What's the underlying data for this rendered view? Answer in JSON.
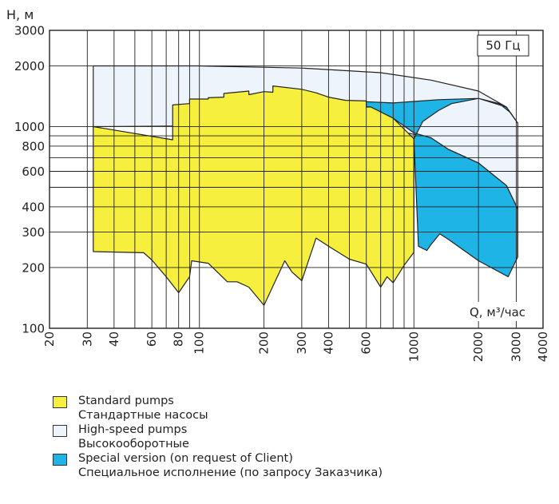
{
  "chart_data": {
    "type": "area",
    "ylabel": "H, м",
    "xlabel": "Q, м³/час",
    "badge": "50 Гц",
    "x_scale": "log",
    "y_scale": "log",
    "xlim": [
      20,
      4000
    ],
    "ylim": [
      100,
      3000
    ],
    "x_ticks": [
      20,
      30,
      40,
      60,
      80,
      100,
      200,
      300,
      400,
      600,
      1000,
      2000,
      3000,
      4000
    ],
    "y_ticks": [
      100,
      200,
      300,
      400,
      600,
      800,
      1000,
      2000,
      3000
    ],
    "grid": true,
    "colors": {
      "standard": "#f7ef3e",
      "high_speed": "#eef4fb",
      "special": "#1fb4e6",
      "grid": "#222222"
    },
    "series": [
      {
        "key": "high_speed",
        "name": "High-speed pumps",
        "name_ru": "Высокооборотные",
        "points": [
          [
            32,
            1000
          ],
          [
            32,
            2000
          ],
          [
            100,
            2000
          ],
          [
            300,
            1950
          ],
          [
            700,
            1850
          ],
          [
            1200,
            1700
          ],
          [
            2000,
            1500
          ],
          [
            2700,
            1250
          ],
          [
            3050,
            1040
          ],
          [
            3050,
            390
          ],
          [
            2700,
            510
          ],
          [
            2000,
            660
          ],
          [
            1450,
            770
          ],
          [
            1200,
            880
          ],
          [
            600,
            1020
          ],
          [
            32,
            1000
          ]
        ]
      },
      {
        "key": "special",
        "name": "Special version (on request of Client)",
        "name_ru": "Специальное исполнение (по запросу Заказчика)",
        "points": [
          [
            580,
            1330
          ],
          [
            580,
            1250
          ],
          [
            630,
            1250
          ],
          [
            800,
            1100
          ],
          [
            1000,
            930
          ],
          [
            1200,
            880
          ],
          [
            1450,
            770
          ],
          [
            2000,
            660
          ],
          [
            2700,
            510
          ],
          [
            3050,
            390
          ],
          [
            3050,
            226
          ],
          [
            2750,
            180
          ],
          [
            2000,
            216
          ],
          [
            1450,
            276
          ],
          [
            1320,
            294
          ],
          [
            1200,
            260
          ],
          [
            1150,
            243
          ],
          [
            1050,
            255
          ],
          [
            1000,
            870
          ],
          [
            1100,
            1060
          ],
          [
            1300,
            1200
          ],
          [
            1500,
            1300
          ],
          [
            2000,
            1380
          ],
          [
            2500,
            1300
          ],
          [
            2800,
            1180
          ],
          [
            3050,
            1040
          ],
          [
            2700,
            1250
          ],
          [
            2000,
            1380
          ],
          [
            1300,
            1360
          ],
          [
            800,
            1310
          ],
          [
            580,
            1330
          ]
        ]
      },
      {
        "key": "standard",
        "name": "Standard pumps",
        "name_ru": "Стандартные насосы",
        "points": [
          [
            32,
            1000
          ],
          [
            75,
            860
          ],
          [
            75,
            1280
          ],
          [
            90,
            1300
          ],
          [
            90,
            1370
          ],
          [
            110,
            1370
          ],
          [
            110,
            1390
          ],
          [
            130,
            1400
          ],
          [
            130,
            1460
          ],
          [
            170,
            1500
          ],
          [
            170,
            1440
          ],
          [
            200,
            1490
          ],
          [
            220,
            1480
          ],
          [
            220,
            1590
          ],
          [
            300,
            1530
          ],
          [
            350,
            1470
          ],
          [
            400,
            1400
          ],
          [
            480,
            1350
          ],
          [
            600,
            1340
          ],
          [
            600,
            1250
          ],
          [
            630,
            1250
          ],
          [
            800,
            1100
          ],
          [
            1000,
            870
          ],
          [
            1000,
            238
          ],
          [
            900,
            205
          ],
          [
            800,
            168
          ],
          [
            750,
            180
          ],
          [
            700,
            160
          ],
          [
            600,
            208
          ],
          [
            500,
            220
          ],
          [
            400,
            255
          ],
          [
            350,
            280
          ],
          [
            300,
            172
          ],
          [
            270,
            190
          ],
          [
            250,
            216
          ],
          [
            200,
            130
          ],
          [
            170,
            160
          ],
          [
            150,
            170
          ],
          [
            135,
            170
          ],
          [
            110,
            210
          ],
          [
            92,
            216
          ],
          [
            90,
            180
          ],
          [
            80,
            150
          ],
          [
            70,
            180
          ],
          [
            60,
            218
          ],
          [
            55,
            237
          ],
          [
            32,
            240
          ],
          [
            32,
            1000
          ]
        ]
      }
    ],
    "legend_position": "bottom-left"
  }
}
